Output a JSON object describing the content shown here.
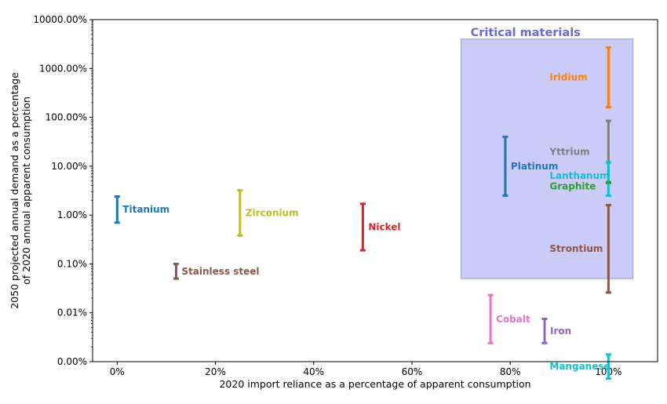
{
  "chart_data": {
    "type": "errorbar",
    "xlabel": "2020 import reliance as a percentage of apparent consumption",
    "ylabel_line1": "2050 projected annual demand as a percentage",
    "ylabel_line2": "of 2020 annual apparent consumption",
    "xlim": [
      -5,
      110
    ],
    "x_ticks": [
      0,
      20,
      40,
      60,
      80,
      100
    ],
    "x_tick_labels": [
      "0%",
      "20%",
      "40%",
      "60%",
      "80%",
      "100%"
    ],
    "y_scale": "log",
    "ylim": [
      0.001,
      10000
    ],
    "y_ticks": [
      0.001,
      0.01,
      0.1,
      1,
      10,
      100,
      1000,
      10000
    ],
    "y_tick_labels": [
      "0.00%",
      "0.01%",
      "0.10%",
      "1.00%",
      "10.00%",
      "100.00%",
      "1000.00%",
      "10000.00%"
    ],
    "critical_region": {
      "label": "Critical materials",
      "x_range": [
        70,
        105
      ],
      "y_range": [
        0.05,
        4000
      ],
      "color": "#c8c8f8",
      "label_color": "#6a6ad8"
    },
    "series": [
      {
        "name": "Titanium",
        "x": 0,
        "y_low": 0.7,
        "y_high": 2.4,
        "color": "#1f77b4"
      },
      {
        "name": "Stainless steel",
        "x": 12,
        "y_low": 0.05,
        "y_high": 0.1,
        "color": "#8c564b"
      },
      {
        "name": "Zirconium",
        "x": 25,
        "y_low": 0.38,
        "y_high": 3.2,
        "color": "#bcbd22"
      },
      {
        "name": "Nickel",
        "x": 50,
        "y_low": 0.19,
        "y_high": 1.7,
        "color": "#d62728"
      },
      {
        "name": "Cobalt",
        "x": 76,
        "y_low": 0.0024,
        "y_high": 0.023,
        "color": "#e377c2"
      },
      {
        "name": "Iron",
        "x": 87,
        "y_low": 0.0024,
        "y_high": 0.0075,
        "color": "#9467bd"
      },
      {
        "name": "Manganese",
        "x": 100,
        "y_low": 0.00045,
        "y_high": 0.0014,
        "color": "#17becf"
      },
      {
        "name": "Platinum",
        "x": 79,
        "y_low": 2.5,
        "y_high": 40,
        "color": "#1f77b4"
      },
      {
        "name": "Iridium",
        "x": 100,
        "y_low": 160,
        "y_high": 2700,
        "color": "#ff7f0e"
      },
      {
        "name": "Yttrium",
        "x": 100,
        "y_low": 4.5,
        "y_high": 85,
        "color": "#7f7f7f"
      },
      {
        "name": "Lanthanum",
        "x": 100,
        "y_low": 2.5,
        "y_high": 12,
        "color": "#17becf"
      },
      {
        "name": "Graphite",
        "x": 100,
        "y_low": 4.7,
        "y_high": 4.7,
        "color": "#2ca02c"
      },
      {
        "name": "Strontium",
        "x": 100,
        "y_low": 0.026,
        "y_high": 1.6,
        "color": "#8c564b"
      }
    ]
  }
}
